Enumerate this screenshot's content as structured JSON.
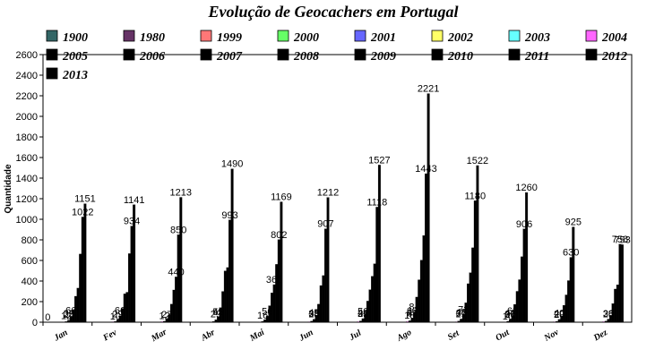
{
  "chart_data": {
    "type": "bar",
    "title": "Evolução de Geocachers em Portugal",
    "ylabel": "Quantidade",
    "xlabel": "",
    "ylim": [
      0,
      2600
    ],
    "yticks": [
      0,
      200,
      400,
      600,
      800,
      1000,
      1200,
      1400,
      1600,
      1800,
      2000,
      2200,
      2400,
      2600
    ],
    "grid": false,
    "legend_position": "top",
    "categories": [
      "Jan",
      "Fev",
      "Mar",
      "Abr",
      "Mai",
      "Jun",
      "Jul",
      "Ago",
      "Set",
      "Out",
      "Nov",
      "Dez"
    ],
    "series": [
      {
        "name": "1900",
        "color": "#336666",
        "values": [
          0,
          0,
          0,
          0,
          0,
          0,
          0,
          0,
          0,
          0,
          0,
          0
        ]
      },
      {
        "name": "1980",
        "color": "#663366",
        "values": [
          0,
          0,
          0,
          0,
          0,
          0,
          0,
          0,
          0,
          0,
          0,
          0
        ]
      },
      {
        "name": "1999",
        "color": "#ff7777",
        "values": [
          0,
          0,
          0,
          0,
          0,
          0,
          0,
          0,
          0,
          0,
          0,
          0
        ]
      },
      {
        "name": "2000",
        "color": "#66ff66",
        "values": [
          0,
          0,
          0,
          0,
          0,
          0,
          0,
          0,
          0,
          0,
          0,
          0
        ]
      },
      {
        "name": "2001",
        "color": "#6666ff",
        "values": [
          0,
          0,
          0,
          0,
          0,
          0,
          0,
          0,
          0,
          0,
          0,
          0
        ]
      },
      {
        "name": "2002",
        "color": "#ffff66",
        "values": [
          0,
          0,
          0,
          0,
          0,
          0,
          0,
          0,
          0,
          0,
          0,
          0
        ]
      },
      {
        "name": "2003",
        "color": "#66ffff",
        "values": [
          0,
          0,
          0,
          0,
          0,
          0,
          0,
          0,
          0,
          0,
          0,
          0
        ]
      },
      {
        "name": "2004",
        "color": "#ff66ff",
        "values": [
          3,
          4,
          5,
          2,
          3,
          4,
          5,
          6,
          4,
          3,
          4,
          5
        ]
      },
      {
        "name": "2005",
        "color": "#000000",
        "values": [
          6,
          8,
          9,
          7,
          8,
          10,
          12,
          14,
          11,
          9,
          8,
          10
        ]
      },
      {
        "name": "2006",
        "color": "#000000",
        "values": [
          19,
          24,
          28,
          23,
          25,
          29,
          35,
          41,
          31,
          26,
          27,
          30
        ]
      },
      {
        "name": "2007",
        "color": "#000000",
        "values": [
          50,
          60,
          69,
          54,
          58,
          68,
          82,
          98,
          72,
          63,
          58,
          67
        ]
      },
      {
        "name": "2008",
        "color": "#000000",
        "values": [
          118,
          134,
          175,
          141,
          160,
          175,
          205,
          244,
          188,
          173,
          164,
          180
        ]
      },
      {
        "name": "2009",
        "color": "#000000",
        "values": [
          252,
          275,
          313,
          299,
          284,
          356,
          315,
          412,
          374,
          300,
          265,
          322
        ]
      },
      {
        "name": "2010",
        "color": "#000000",
        "values": [
          331,
          291,
          440,
          498,
          365,
          453,
          446,
          603,
          480,
          413,
          404,
          363
        ]
      },
      {
        "name": "2011",
        "color": "#000000",
        "values": [
          662,
          666,
          850,
          531,
          562,
          907,
          567,
          842,
          723,
          636,
          630,
          758
        ]
      },
      {
        "name": "2012",
        "color": "#000000",
        "values": [
          1022,
          934,
          1213,
          993,
          802,
          1212,
          1118,
          1443,
          1180,
          906,
          925,
          753
        ]
      },
      {
        "name": "2013",
        "color": "#000000",
        "values": [
          1151,
          1141,
          0,
          1490,
          1169,
          0,
          1527,
          2221,
          1522,
          1260,
          0,
          0
        ]
      }
    ],
    "data_labels": [
      {
        "category": "Jan",
        "text": "0"
      },
      {
        "category": "Jan",
        "text": "12"
      },
      {
        "category": "Jan",
        "text": "25"
      },
      {
        "category": "Jan",
        "text": "33"
      },
      {
        "category": "Jan",
        "text": "66"
      },
      {
        "category": "Jan",
        "text": "1151"
      },
      {
        "category": "Jan",
        "text": "1022"
      },
      {
        "category": "Fev",
        "text": "10"
      },
      {
        "category": "Fev",
        "text": "29"
      },
      {
        "category": "Fev",
        "text": "66"
      },
      {
        "category": "Fev",
        "text": "1141"
      },
      {
        "category": "Fev",
        "text": "934"
      },
      {
        "category": "Mar",
        "text": "12"
      },
      {
        "category": "Mar",
        "text": "27"
      },
      {
        "category": "Mar",
        "text": "440"
      },
      {
        "category": "Mar",
        "text": "850"
      },
      {
        "category": "Mar",
        "text": "1213"
      },
      {
        "category": "Abr",
        "text": "29"
      },
      {
        "category": "Abr",
        "text": "49"
      },
      {
        "category": "Abr",
        "text": "53"
      },
      {
        "category": "Abr",
        "text": "993"
      },
      {
        "category": "Abr",
        "text": "1490"
      },
      {
        "category": "Mai",
        "text": "16"
      },
      {
        "category": "Mai",
        "text": "365"
      },
      {
        "category": "Mai",
        "text": "56"
      },
      {
        "category": "Mai",
        "text": "802"
      },
      {
        "category": "Mai",
        "text": "1169"
      },
      {
        "category": "Jun",
        "text": "28"
      },
      {
        "category": "Jun",
        "text": "35"
      },
      {
        "category": "Jun",
        "text": "45"
      },
      {
        "category": "Jun",
        "text": "907"
      },
      {
        "category": "Jun",
        "text": "1212"
      },
      {
        "category": "Jul",
        "text": "25"
      },
      {
        "category": "Jul",
        "text": "31"
      },
      {
        "category": "Jul",
        "text": "44"
      },
      {
        "category": "Jul",
        "text": "56"
      },
      {
        "category": "Jul",
        "text": "1118"
      },
      {
        "category": "Jul",
        "text": "1527"
      },
      {
        "category": "Ago",
        "text": "18"
      },
      {
        "category": "Ago",
        "text": "31"
      },
      {
        "category": "Ago",
        "text": "41"
      },
      {
        "category": "Ago",
        "text": "60"
      },
      {
        "category": "Ago",
        "text": "84"
      },
      {
        "category": "Ago",
        "text": "1443"
      },
      {
        "category": "Ago",
        "text": "2221"
      },
      {
        "category": "Set",
        "text": "29"
      },
      {
        "category": "Set",
        "text": "37"
      },
      {
        "category": "Set",
        "text": "48"
      },
      {
        "category": "Set",
        "text": "72"
      },
      {
        "category": "Set",
        "text": "1180"
      },
      {
        "category": "Set",
        "text": "1522"
      },
      {
        "category": "Out",
        "text": "10"
      },
      {
        "category": "Out",
        "text": "26"
      },
      {
        "category": "Out",
        "text": "30"
      },
      {
        "category": "Out",
        "text": "41"
      },
      {
        "category": "Out",
        "text": "63"
      },
      {
        "category": "Out",
        "text": "906"
      },
      {
        "category": "Out",
        "text": "1260"
      },
      {
        "category": "Nov",
        "text": "20"
      },
      {
        "category": "Nov",
        "text": "29"
      },
      {
        "category": "Nov",
        "text": "40"
      },
      {
        "category": "Nov",
        "text": "630"
      },
      {
        "category": "Nov",
        "text": "925"
      },
      {
        "category": "Dez",
        "text": "25"
      },
      {
        "category": "Dez",
        "text": "36"
      },
      {
        "category": "Dez",
        "text": "753"
      },
      {
        "category": "Dez",
        "text": "758"
      }
    ]
  }
}
